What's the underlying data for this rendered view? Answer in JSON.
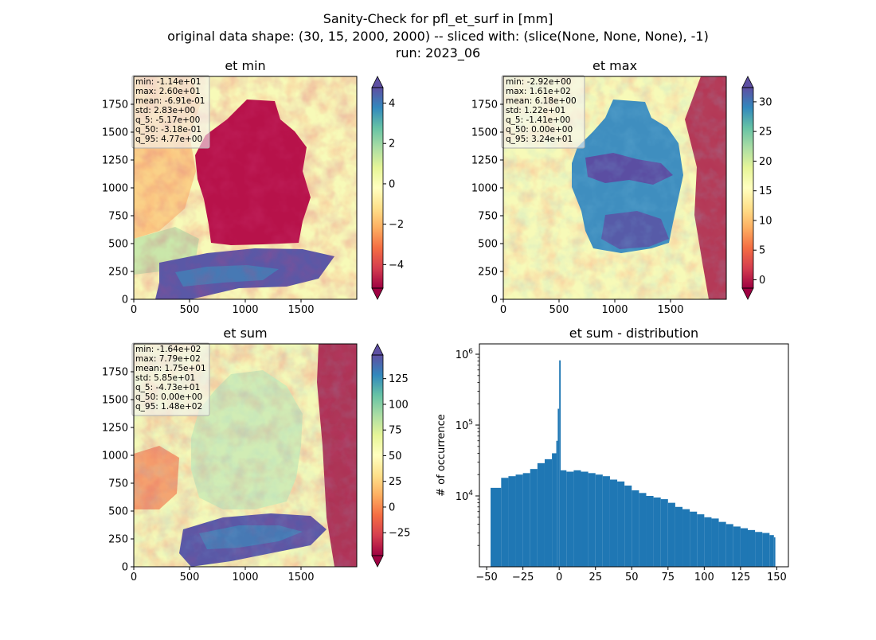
{
  "figure": {
    "title_lines": [
      "Sanity-Check for pfl_et_surf in [mm]",
      "original data shape: (30, 15, 2000, 2000) -- sliced with: (slice(None, None, None), -1)",
      "run: 2023_06"
    ]
  },
  "chart_data": [
    {
      "type": "heatmap",
      "title": "et min",
      "xlim": [
        0,
        2000
      ],
      "ylim": [
        0,
        2000
      ],
      "x_ticks": [
        0,
        500,
        1000,
        1500
      ],
      "y_ticks": [
        0,
        250,
        500,
        750,
        1000,
        1250,
        1500,
        1750
      ],
      "colormap": "Spectral",
      "colorbar": {
        "range": [
          -5.17,
          4.77
        ],
        "ticks": [
          -4,
          -2,
          0,
          2,
          4
        ],
        "extend": "both"
      },
      "stats": [
        "min: -1.14e+01",
        "max: 2.60e+01",
        "mean: -6.91e-01",
        "std: 2.83e+00",
        "q_5: -5.17e+00",
        "q_50: -3.18e-01",
        "q_95: 4.77e+00"
      ]
    },
    {
      "type": "heatmap",
      "title": "et max",
      "xlim": [
        0,
        2000
      ],
      "ylim": [
        0,
        2000
      ],
      "x_ticks": [
        0,
        500,
        1000,
        1500
      ],
      "y_ticks": [
        0,
        250,
        500,
        750,
        1000,
        1250,
        1500,
        1750
      ],
      "colormap": "Spectral",
      "colorbar": {
        "range": [
          -1.41,
          32.4
        ],
        "ticks": [
          0,
          5,
          10,
          15,
          20,
          25,
          30
        ],
        "extend": "both"
      },
      "stats": [
        "min: -2.92e+00",
        "max: 1.61e+02",
        "mean: 6.18e+00",
        "std: 1.22e+01",
        "q_5: -1.41e+00",
        "q_50: 0.00e+00",
        "q_95: 3.24e+01"
      ]
    },
    {
      "type": "heatmap",
      "title": "et sum",
      "xlim": [
        0,
        2000
      ],
      "ylim": [
        0,
        2000
      ],
      "x_ticks": [
        0,
        500,
        1000,
        1500
      ],
      "y_ticks": [
        0,
        250,
        500,
        750,
        1000,
        1250,
        1500,
        1750
      ],
      "colormap": "Spectral",
      "colorbar": {
        "range": [
          -47.3,
          148
        ],
        "ticks": [
          -25,
          0,
          25,
          50,
          75,
          100,
          125
        ],
        "extend": "both"
      },
      "stats": [
        "min: -1.64e+02",
        "max: 7.79e+02",
        "mean: 1.75e+01",
        "std: 5.85e+01",
        "q_5: -4.73e+01",
        "q_50: 0.00e+00",
        "q_95: 1.48e+02"
      ]
    },
    {
      "type": "bar",
      "title": "et sum - distribution",
      "ylabel": "# of occurrence",
      "xlim": [
        -55,
        158
      ],
      "ylim": [
        1000,
        1400000
      ],
      "yscale": "log",
      "x_ticks": [
        -50,
        -25,
        0,
        25,
        50,
        75,
        100,
        125,
        150
      ],
      "y_ticks": [
        {
          "value": 10000,
          "base": "10",
          "exp": "4"
        },
        {
          "value": 100000,
          "base": "10",
          "exp": "5"
        },
        {
          "value": 1000000,
          "base": "10",
          "exp": "6"
        }
      ],
      "color": "#1f77b4",
      "bins": [
        [
          -47.3,
          13000
        ],
        [
          -40,
          18000
        ],
        [
          -35,
          19000
        ],
        [
          -30,
          20000
        ],
        [
          -25,
          21000
        ],
        [
          -20,
          24000
        ],
        [
          -15,
          29000
        ],
        [
          -10,
          33000
        ],
        [
          -5,
          40000
        ],
        [
          -2,
          60000
        ],
        [
          -1,
          170000
        ],
        [
          0,
          820000
        ],
        [
          1,
          23000
        ],
        [
          5,
          22000
        ],
        [
          10,
          23000
        ],
        [
          15,
          22000
        ],
        [
          20,
          21000
        ],
        [
          25,
          20000
        ],
        [
          30,
          19000
        ],
        [
          35,
          17000
        ],
        [
          40,
          16000
        ],
        [
          45,
          14000
        ],
        [
          50,
          12000
        ],
        [
          55,
          11000
        ],
        [
          60,
          10000
        ],
        [
          65,
          9500
        ],
        [
          70,
          9000
        ],
        [
          75,
          8000
        ],
        [
          80,
          7000
        ],
        [
          85,
          6500
        ],
        [
          90,
          6000
        ],
        [
          95,
          5500
        ],
        [
          100,
          5000
        ],
        [
          105,
          4800
        ],
        [
          110,
          4300
        ],
        [
          115,
          4000
        ],
        [
          120,
          3700
        ],
        [
          125,
          3500
        ],
        [
          130,
          3300
        ],
        [
          135,
          3100
        ],
        [
          140,
          3000
        ],
        [
          145,
          2800
        ],
        [
          148,
          2600
        ]
      ]
    }
  ]
}
